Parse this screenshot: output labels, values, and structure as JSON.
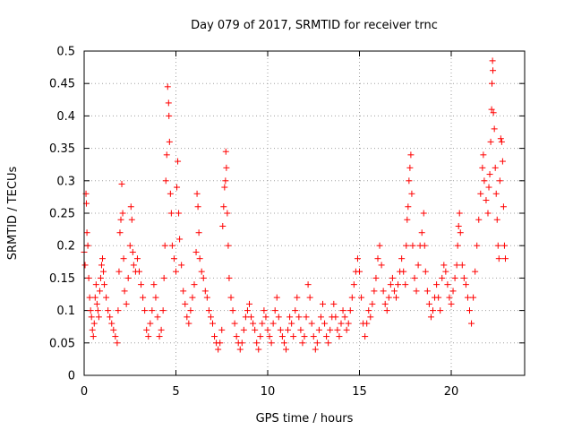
{
  "chart_data": {
    "type": "scatter",
    "title": "Day 079 of 2017, SRMTID for receiver trnc",
    "xlabel": "GPS time / hours",
    "ylabel": "SRMTID / TECUs",
    "xlim": [
      0,
      24
    ],
    "ylim": [
      0,
      0.5
    ],
    "xticks": [
      0,
      5,
      10,
      15,
      20
    ],
    "yticks": [
      0,
      0.05,
      0.1,
      0.15,
      0.2,
      0.25,
      0.3,
      0.35,
      0.4,
      0.45,
      0.5
    ],
    "xtick_labels": [
      "0",
      "5",
      "10",
      "15",
      "20"
    ],
    "ytick_labels": [
      "0",
      "0.05",
      "0.1",
      "0.15",
      "0.2",
      "0.25",
      "0.3",
      "0.35",
      "0.4",
      "0.45",
      "0.5"
    ],
    "grid": true,
    "marker": "+",
    "color": "#ff0000",
    "series": [
      {
        "name": "SRMTID",
        "points": [
          [
            0.0,
            0.19
          ],
          [
            0.05,
            0.17
          ],
          [
            0.1,
            0.28
          ],
          [
            0.12,
            0.265
          ],
          [
            0.15,
            0.22
          ],
          [
            0.2,
            0.2
          ],
          [
            0.25,
            0.15
          ],
          [
            0.3,
            0.12
          ],
          [
            0.35,
            0.1
          ],
          [
            0.4,
            0.09
          ],
          [
            0.45,
            0.07
          ],
          [
            0.5,
            0.06
          ],
          [
            0.55,
            0.08
          ],
          [
            0.6,
            0.12
          ],
          [
            0.65,
            0.14
          ],
          [
            0.7,
            0.11
          ],
          [
            0.75,
            0.1
          ],
          [
            0.8,
            0.09
          ],
          [
            0.85,
            0.13
          ],
          [
            0.9,
            0.15
          ],
          [
            0.95,
            0.17
          ],
          [
            1.0,
            0.18
          ],
          [
            1.05,
            0.16
          ],
          [
            1.1,
            0.14
          ],
          [
            1.2,
            0.12
          ],
          [
            1.3,
            0.1
          ],
          [
            1.4,
            0.09
          ],
          [
            1.5,
            0.08
          ],
          [
            1.6,
            0.07
          ],
          [
            1.7,
            0.06
          ],
          [
            1.8,
            0.05
          ],
          [
            1.85,
            0.1
          ],
          [
            1.9,
            0.16
          ],
          [
            1.95,
            0.22
          ],
          [
            2.0,
            0.24
          ],
          [
            2.05,
            0.295
          ],
          [
            2.1,
            0.25
          ],
          [
            2.15,
            0.18
          ],
          [
            2.2,
            0.13
          ],
          [
            2.3,
            0.11
          ],
          [
            2.4,
            0.15
          ],
          [
            2.5,
            0.2
          ],
          [
            2.55,
            0.26
          ],
          [
            2.6,
            0.24
          ],
          [
            2.65,
            0.19
          ],
          [
            2.7,
            0.17
          ],
          [
            2.8,
            0.16
          ],
          [
            2.9,
            0.18
          ],
          [
            3.0,
            0.16
          ],
          [
            3.1,
            0.14
          ],
          [
            3.2,
            0.12
          ],
          [
            3.3,
            0.1
          ],
          [
            3.4,
            0.07
          ],
          [
            3.5,
            0.06
          ],
          [
            3.6,
            0.08
          ],
          [
            3.7,
            0.1
          ],
          [
            3.8,
            0.14
          ],
          [
            3.9,
            0.12
          ],
          [
            4.0,
            0.09
          ],
          [
            4.1,
            0.06
          ],
          [
            4.2,
            0.07
          ],
          [
            4.3,
            0.1
          ],
          [
            4.35,
            0.15
          ],
          [
            4.4,
            0.2
          ],
          [
            4.45,
            0.3
          ],
          [
            4.5,
            0.34
          ],
          [
            4.55,
            0.445
          ],
          [
            4.6,
            0.42
          ],
          [
            4.62,
            0.4
          ],
          [
            4.65,
            0.36
          ],
          [
            4.7,
            0.28
          ],
          [
            4.75,
            0.25
          ],
          [
            4.8,
            0.2
          ],
          [
            4.9,
            0.18
          ],
          [
            5.0,
            0.16
          ],
          [
            5.05,
            0.29
          ],
          [
            5.1,
            0.33
          ],
          [
            5.15,
            0.25
          ],
          [
            5.2,
            0.21
          ],
          [
            5.3,
            0.17
          ],
          [
            5.4,
            0.13
          ],
          [
            5.5,
            0.11
          ],
          [
            5.6,
            0.09
          ],
          [
            5.7,
            0.08
          ],
          [
            5.8,
            0.1
          ],
          [
            5.9,
            0.12
          ],
          [
            6.0,
            0.14
          ],
          [
            6.1,
            0.19
          ],
          [
            6.15,
            0.28
          ],
          [
            6.2,
            0.26
          ],
          [
            6.25,
            0.22
          ],
          [
            6.3,
            0.18
          ],
          [
            6.4,
            0.16
          ],
          [
            6.5,
            0.15
          ],
          [
            6.6,
            0.13
          ],
          [
            6.7,
            0.12
          ],
          [
            6.8,
            0.1
          ],
          [
            6.9,
            0.09
          ],
          [
            7.0,
            0.08
          ],
          [
            7.1,
            0.06
          ],
          [
            7.2,
            0.05
          ],
          [
            7.3,
            0.04
          ],
          [
            7.4,
            0.05
          ],
          [
            7.5,
            0.07
          ],
          [
            7.55,
            0.23
          ],
          [
            7.6,
            0.26
          ],
          [
            7.65,
            0.29
          ],
          [
            7.7,
            0.3
          ],
          [
            7.72,
            0.345
          ],
          [
            7.75,
            0.32
          ],
          [
            7.8,
            0.25
          ],
          [
            7.85,
            0.2
          ],
          [
            7.9,
            0.15
          ],
          [
            8.0,
            0.12
          ],
          [
            8.1,
            0.1
          ],
          [
            8.2,
            0.08
          ],
          [
            8.3,
            0.06
          ],
          [
            8.4,
            0.05
          ],
          [
            8.5,
            0.04
          ],
          [
            8.6,
            0.05
          ],
          [
            8.7,
            0.07
          ],
          [
            8.8,
            0.09
          ],
          [
            8.9,
            0.1
          ],
          [
            9.0,
            0.11
          ],
          [
            9.1,
            0.09
          ],
          [
            9.2,
            0.08
          ],
          [
            9.3,
            0.07
          ],
          [
            9.4,
            0.05
          ],
          [
            9.5,
            0.04
          ],
          [
            9.6,
            0.06
          ],
          [
            9.7,
            0.08
          ],
          [
            9.8,
            0.1
          ],
          [
            9.9,
            0.09
          ],
          [
            10.0,
            0.07
          ],
          [
            10.1,
            0.06
          ],
          [
            10.2,
            0.05
          ],
          [
            10.3,
            0.08
          ],
          [
            10.4,
            0.1
          ],
          [
            10.5,
            0.12
          ],
          [
            10.6,
            0.09
          ],
          [
            10.7,
            0.07
          ],
          [
            10.8,
            0.06
          ],
          [
            10.9,
            0.05
          ],
          [
            11.0,
            0.04
          ],
          [
            11.1,
            0.07
          ],
          [
            11.2,
            0.09
          ],
          [
            11.3,
            0.08
          ],
          [
            11.4,
            0.06
          ],
          [
            11.5,
            0.1
          ],
          [
            11.6,
            0.12
          ],
          [
            11.7,
            0.09
          ],
          [
            11.8,
            0.07
          ],
          [
            11.9,
            0.05
          ],
          [
            12.0,
            0.06
          ],
          [
            12.1,
            0.09
          ],
          [
            12.2,
            0.14
          ],
          [
            12.3,
            0.12
          ],
          [
            12.4,
            0.08
          ],
          [
            12.5,
            0.06
          ],
          [
            12.6,
            0.04
          ],
          [
            12.7,
            0.05
          ],
          [
            12.8,
            0.07
          ],
          [
            12.9,
            0.09
          ],
          [
            13.0,
            0.11
          ],
          [
            13.1,
            0.08
          ],
          [
            13.2,
            0.06
          ],
          [
            13.3,
            0.05
          ],
          [
            13.4,
            0.07
          ],
          [
            13.5,
            0.09
          ],
          [
            13.6,
            0.11
          ],
          [
            13.7,
            0.09
          ],
          [
            13.8,
            0.07
          ],
          [
            13.9,
            0.06
          ],
          [
            14.0,
            0.08
          ],
          [
            14.1,
            0.1
          ],
          [
            14.2,
            0.09
          ],
          [
            14.3,
            0.07
          ],
          [
            14.4,
            0.08
          ],
          [
            14.5,
            0.1
          ],
          [
            14.6,
            0.12
          ],
          [
            14.7,
            0.14
          ],
          [
            14.8,
            0.16
          ],
          [
            14.9,
            0.18
          ],
          [
            15.0,
            0.16
          ],
          [
            15.1,
            0.12
          ],
          [
            15.2,
            0.08
          ],
          [
            15.3,
            0.06
          ],
          [
            15.4,
            0.08
          ],
          [
            15.5,
            0.1
          ],
          [
            15.6,
            0.09
          ],
          [
            15.7,
            0.11
          ],
          [
            15.8,
            0.13
          ],
          [
            15.9,
            0.15
          ],
          [
            16.0,
            0.18
          ],
          [
            16.1,
            0.2
          ],
          [
            16.2,
            0.17
          ],
          [
            16.3,
            0.13
          ],
          [
            16.4,
            0.11
          ],
          [
            16.5,
            0.1
          ],
          [
            16.6,
            0.12
          ],
          [
            16.7,
            0.14
          ],
          [
            16.8,
            0.15
          ],
          [
            16.9,
            0.13
          ],
          [
            17.0,
            0.12
          ],
          [
            17.1,
            0.14
          ],
          [
            17.2,
            0.16
          ],
          [
            17.3,
            0.18
          ],
          [
            17.4,
            0.16
          ],
          [
            17.5,
            0.14
          ],
          [
            17.55,
            0.2
          ],
          [
            17.6,
            0.24
          ],
          [
            17.65,
            0.26
          ],
          [
            17.7,
            0.3
          ],
          [
            17.75,
            0.32
          ],
          [
            17.8,
            0.34
          ],
          [
            17.85,
            0.28
          ],
          [
            17.9,
            0.2
          ],
          [
            18.0,
            0.15
          ],
          [
            18.1,
            0.13
          ],
          [
            18.2,
            0.17
          ],
          [
            18.3,
            0.2
          ],
          [
            18.4,
            0.22
          ],
          [
            18.5,
            0.25
          ],
          [
            18.55,
            0.2
          ],
          [
            18.6,
            0.16
          ],
          [
            18.7,
            0.13
          ],
          [
            18.8,
            0.11
          ],
          [
            18.9,
            0.09
          ],
          [
            19.0,
            0.1
          ],
          [
            19.1,
            0.12
          ],
          [
            19.2,
            0.14
          ],
          [
            19.3,
            0.12
          ],
          [
            19.4,
            0.1
          ],
          [
            19.5,
            0.15
          ],
          [
            19.6,
            0.17
          ],
          [
            19.7,
            0.16
          ],
          [
            19.8,
            0.14
          ],
          [
            19.9,
            0.12
          ],
          [
            20.0,
            0.11
          ],
          [
            20.1,
            0.13
          ],
          [
            20.2,
            0.15
          ],
          [
            20.3,
            0.17
          ],
          [
            20.35,
            0.2
          ],
          [
            20.4,
            0.23
          ],
          [
            20.45,
            0.25
          ],
          [
            20.5,
            0.22
          ],
          [
            20.6,
            0.17
          ],
          [
            20.7,
            0.15
          ],
          [
            20.8,
            0.14
          ],
          [
            20.9,
            0.12
          ],
          [
            21.0,
            0.1
          ],
          [
            21.1,
            0.08
          ],
          [
            21.2,
            0.12
          ],
          [
            21.3,
            0.16
          ],
          [
            21.4,
            0.2
          ],
          [
            21.5,
            0.24
          ],
          [
            21.6,
            0.28
          ],
          [
            21.7,
            0.32
          ],
          [
            21.75,
            0.34
          ],
          [
            21.8,
            0.3
          ],
          [
            21.9,
            0.27
          ],
          [
            22.0,
            0.25
          ],
          [
            22.05,
            0.29
          ],
          [
            22.1,
            0.31
          ],
          [
            22.15,
            0.36
          ],
          [
            22.2,
            0.41
          ],
          [
            22.22,
            0.45
          ],
          [
            22.25,
            0.485
          ],
          [
            22.27,
            0.47
          ],
          [
            22.3,
            0.405
          ],
          [
            22.35,
            0.38
          ],
          [
            22.4,
            0.32
          ],
          [
            22.45,
            0.28
          ],
          [
            22.5,
            0.24
          ],
          [
            22.55,
            0.2
          ],
          [
            22.6,
            0.18
          ],
          [
            22.65,
            0.3
          ],
          [
            22.7,
            0.365
          ],
          [
            22.75,
            0.36
          ],
          [
            22.8,
            0.33
          ],
          [
            22.85,
            0.26
          ],
          [
            22.9,
            0.2
          ],
          [
            22.95,
            0.18
          ]
        ]
      }
    ]
  }
}
